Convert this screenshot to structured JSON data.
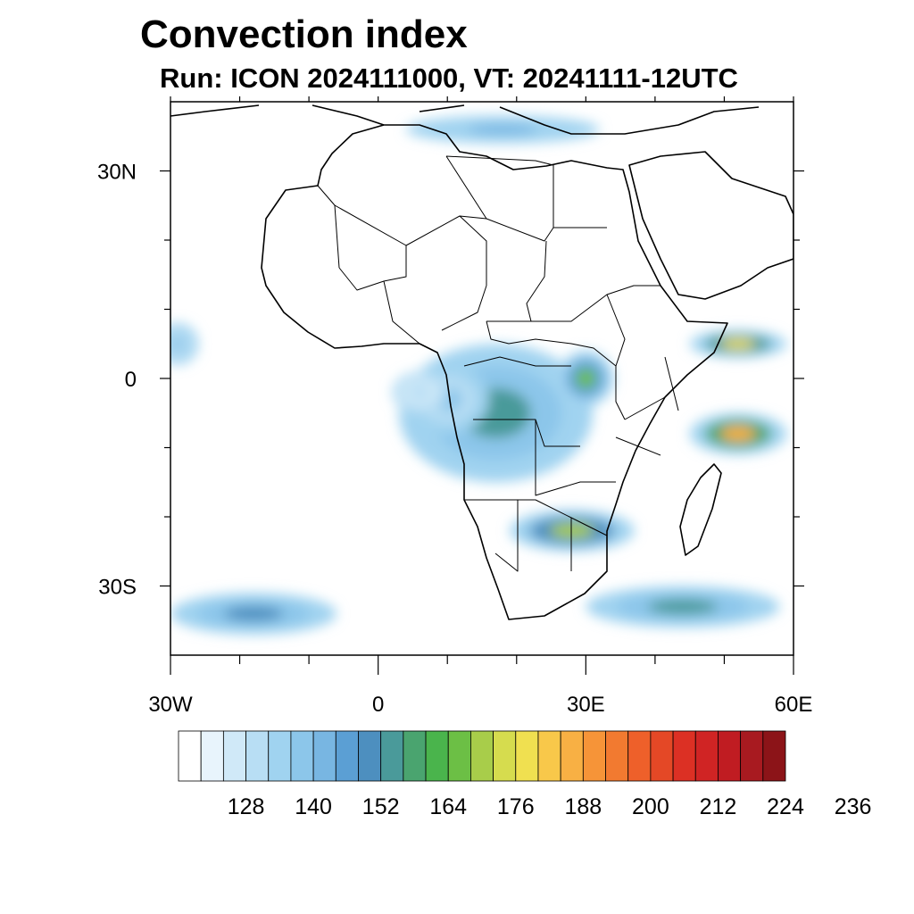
{
  "title": "Convection index",
  "subtitle": "Run: ICON 2024111000,  VT: 20241111-12UTC",
  "map": {
    "lon_range": [
      -30,
      60
    ],
    "lat_range": [
      -40,
      40
    ],
    "lat_tick_labels": [
      {
        "lat": 30,
        "label": "30N"
      },
      {
        "lat": 0,
        "label": "0"
      },
      {
        "lat": -30,
        "label": "30S"
      }
    ],
    "lon_tick_labels": [
      {
        "lon": -30,
        "label": "30W"
      },
      {
        "lon": 0,
        "label": "0"
      },
      {
        "lon": 30,
        "label": "30E"
      },
      {
        "lon": 60,
        "label": "60E"
      }
    ],
    "field_blobs": [
      {
        "name": "central-africa-core",
        "lon": 17,
        "lat": -5,
        "rlon": 14,
        "rlat": 10,
        "level": 9
      },
      {
        "name": "congo-west",
        "lon": 10,
        "lat": -3,
        "rlon": 6,
        "rlat": 5,
        "level": 5
      },
      {
        "name": "lake-victoria",
        "lon": 30,
        "lat": 0,
        "rlon": 4,
        "rlat": 4,
        "level": 12
      },
      {
        "name": "south-africa-band",
        "lon": 28,
        "lat": -22,
        "rlon": 9,
        "rlat": 3,
        "level": 13
      },
      {
        "name": "mozambique-band",
        "lon": 44,
        "lat": -33,
        "rlon": 14,
        "rlat": 3,
        "level": 9
      },
      {
        "name": "south-atlantic-band",
        "lon": -18,
        "lat": -34,
        "rlon": 12,
        "rlat": 3,
        "level": 8
      },
      {
        "name": "somalia-offshore",
        "lon": 52,
        "lat": 5,
        "rlon": 7,
        "rlat": 2,
        "level": 15
      },
      {
        "name": "indian-ocean",
        "lon": 52,
        "lat": -8,
        "rlon": 7,
        "rlat": 3,
        "level": 17
      },
      {
        "name": "mediterranean",
        "lon": 18,
        "lat": 36,
        "rlon": 14,
        "rlat": 2,
        "level": 6
      },
      {
        "name": "atlantic-itcz",
        "lon": -29,
        "lat": 5,
        "rlon": 3,
        "rlat": 3,
        "level": 5
      },
      {
        "name": "gulf-guinea",
        "lon": 6,
        "lat": -2,
        "rlon": 4,
        "rlat": 3,
        "level": 3
      }
    ]
  },
  "colorbar": {
    "colors": [
      "#ffffff",
      "#e8f4fc",
      "#d0e9f8",
      "#b8def4",
      "#a0d3f0",
      "#8cc6ea",
      "#78b6e2",
      "#5b9fd4",
      "#4d8fbf",
      "#4a9a9a",
      "#4aa46f",
      "#4ab44c",
      "#6cbf45",
      "#a8cd4a",
      "#d6dc4e",
      "#f0e050",
      "#f8c84a",
      "#f8b044",
      "#f69438",
      "#f27a30",
      "#ee602a",
      "#e44826",
      "#dc3024",
      "#d02424",
      "#c01c22",
      "#a81a20",
      "#8c1418"
    ],
    "labels": [
      "128",
      "140",
      "152",
      "164",
      "176",
      "188",
      "200",
      "212",
      "224",
      "236"
    ]
  }
}
